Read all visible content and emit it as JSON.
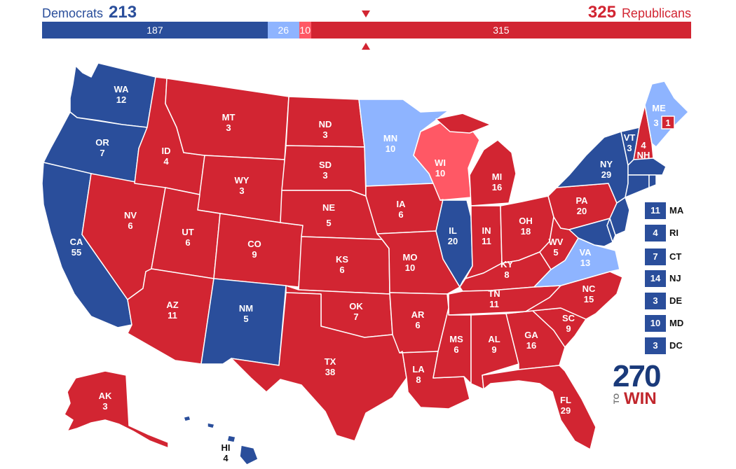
{
  "header": {
    "dem_label": "Democrats",
    "dem_total": "213",
    "rep_label": "Republicans",
    "rep_total": "325"
  },
  "colors": {
    "safe_dem": "#2a4e9b",
    "lean_dem": "#8eb4ff",
    "lean_rep": "#ff5865",
    "safe_rep": "#d22532"
  },
  "bar": [
    {
      "key": "safe_dem",
      "label": "187",
      "value": 187,
      "color": "#2a4e9b"
    },
    {
      "key": "lean_dem",
      "label": "26",
      "value": 26,
      "color": "#8eb4ff"
    },
    {
      "key": "lean_rep",
      "label": "10",
      "value": 10,
      "color": "#ff5865"
    },
    {
      "key": "safe_rep",
      "label": "315",
      "value": 315,
      "color": "#d22532"
    }
  ],
  "states": {
    "WA": {
      "abbr": "WA",
      "ev": "12",
      "rating": "safe_dem"
    },
    "OR": {
      "abbr": "OR",
      "ev": "7",
      "rating": "safe_dem"
    },
    "CA": {
      "abbr": "CA",
      "ev": "55",
      "rating": "safe_dem"
    },
    "NV": {
      "abbr": "NV",
      "ev": "6",
      "rating": "safe_rep"
    },
    "ID": {
      "abbr": "ID",
      "ev": "4",
      "rating": "safe_rep"
    },
    "MT": {
      "abbr": "MT",
      "ev": "3",
      "rating": "safe_rep"
    },
    "WY": {
      "abbr": "WY",
      "ev": "3",
      "rating": "safe_rep"
    },
    "UT": {
      "abbr": "UT",
      "ev": "6",
      "rating": "safe_rep"
    },
    "AZ": {
      "abbr": "AZ",
      "ev": "11",
      "rating": "safe_rep"
    },
    "CO": {
      "abbr": "CO",
      "ev": "9",
      "rating": "safe_rep"
    },
    "NM": {
      "abbr": "NM",
      "ev": "5",
      "rating": "safe_dem"
    },
    "ND": {
      "abbr": "ND",
      "ev": "3",
      "rating": "safe_rep"
    },
    "SD": {
      "abbr": "SD",
      "ev": "3",
      "rating": "safe_rep"
    },
    "NE": {
      "abbr": "NE",
      "ev": "5",
      "rating": "safe_rep"
    },
    "KS": {
      "abbr": "KS",
      "ev": "6",
      "rating": "safe_rep"
    },
    "OK": {
      "abbr": "OK",
      "ev": "7",
      "rating": "safe_rep"
    },
    "TX": {
      "abbr": "TX",
      "ev": "38",
      "rating": "safe_rep"
    },
    "MN": {
      "abbr": "MN",
      "ev": "10",
      "rating": "lean_dem"
    },
    "IA": {
      "abbr": "IA",
      "ev": "6",
      "rating": "safe_rep"
    },
    "MO": {
      "abbr": "MO",
      "ev": "10",
      "rating": "safe_rep"
    },
    "AR": {
      "abbr": "AR",
      "ev": "6",
      "rating": "safe_rep"
    },
    "LA": {
      "abbr": "LA",
      "ev": "8",
      "rating": "safe_rep"
    },
    "WI": {
      "abbr": "WI",
      "ev": "10",
      "rating": "lean_rep"
    },
    "IL": {
      "abbr": "IL",
      "ev": "20",
      "rating": "safe_dem"
    },
    "MI": {
      "abbr": "MI",
      "ev": "16",
      "rating": "safe_rep"
    },
    "IN": {
      "abbr": "IN",
      "ev": "11",
      "rating": "safe_rep"
    },
    "OH": {
      "abbr": "OH",
      "ev": "18",
      "rating": "safe_rep"
    },
    "KY": {
      "abbr": "KY",
      "ev": "8",
      "rating": "safe_rep"
    },
    "TN": {
      "abbr": "TN",
      "ev": "11",
      "rating": "safe_rep"
    },
    "MS": {
      "abbr": "MS",
      "ev": "6",
      "rating": "safe_rep"
    },
    "AL": {
      "abbr": "AL",
      "ev": "9",
      "rating": "safe_rep"
    },
    "GA": {
      "abbr": "GA",
      "ev": "16",
      "rating": "safe_rep"
    },
    "FL": {
      "abbr": "FL",
      "ev": "29",
      "rating": "safe_rep"
    },
    "SC": {
      "abbr": "SC",
      "ev": "9",
      "rating": "safe_rep"
    },
    "NC": {
      "abbr": "NC",
      "ev": "15",
      "rating": "safe_rep"
    },
    "VA": {
      "abbr": "VA",
      "ev": "13",
      "rating": "lean_dem"
    },
    "WV": {
      "abbr": "WV",
      "ev": "5",
      "rating": "safe_rep"
    },
    "PA": {
      "abbr": "PA",
      "ev": "20",
      "rating": "safe_rep"
    },
    "NY": {
      "abbr": "NY",
      "ev": "29",
      "rating": "safe_dem"
    },
    "VT": {
      "abbr": "VT",
      "ev": "3",
      "rating": "safe_dem"
    },
    "NH": {
      "abbr": "NH",
      "ev": "4",
      "rating": "safe_rep"
    },
    "ME": {
      "abbr": "ME",
      "ev": "3",
      "rating": "lean_dem"
    },
    "ME_CD2": {
      "ev": "1",
      "rating": "safe_rep"
    },
    "AK": {
      "abbr": "AK",
      "ev": "3",
      "rating": "safe_rep"
    },
    "HI": {
      "abbr": "HI",
      "ev": "4",
      "rating": "safe_dem"
    }
  },
  "small_states": [
    {
      "abbr": "MA",
      "ev": "11",
      "rating": "safe_dem"
    },
    {
      "abbr": "RI",
      "ev": "4",
      "rating": "safe_dem"
    },
    {
      "abbr": "CT",
      "ev": "7",
      "rating": "safe_dem"
    },
    {
      "abbr": "NJ",
      "ev": "14",
      "rating": "safe_dem"
    },
    {
      "abbr": "DE",
      "ev": "3",
      "rating": "safe_dem"
    },
    {
      "abbr": "MD",
      "ev": "10",
      "rating": "safe_dem"
    },
    {
      "abbr": "DC",
      "ev": "3",
      "rating": "safe_dem"
    }
  ],
  "logo": {
    "number": "270",
    "to": "TO",
    "win": "WIN"
  }
}
